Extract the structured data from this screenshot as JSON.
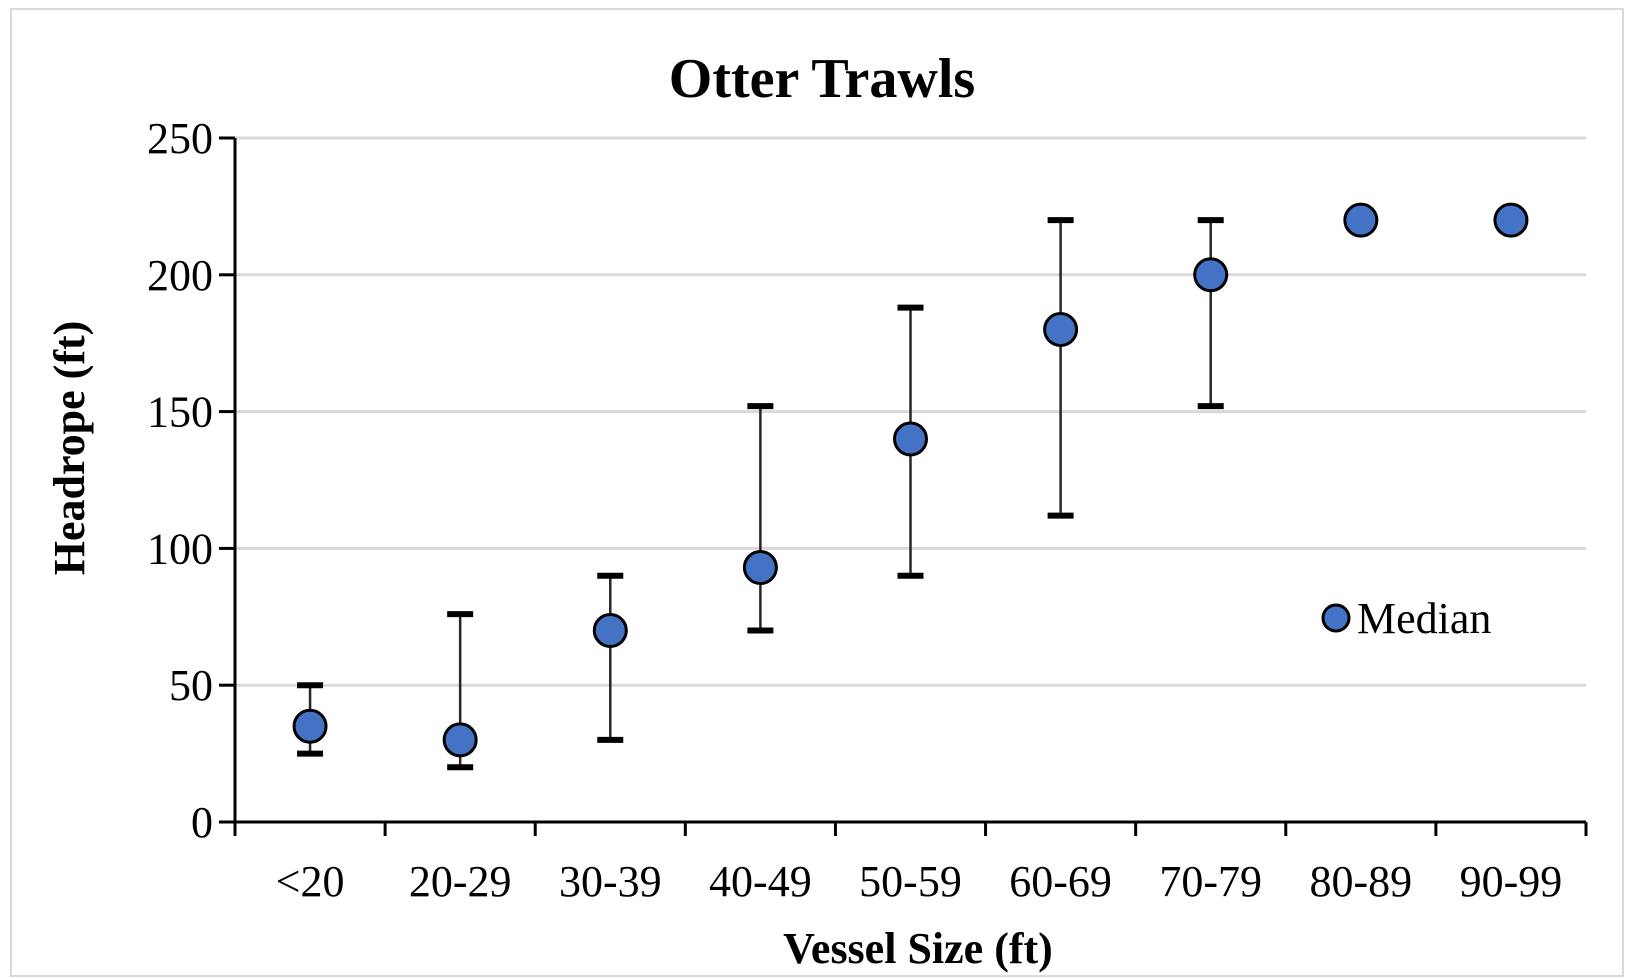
{
  "chart_data": {
    "type": "scatter",
    "title": "Otter Trawls",
    "xlabel": "Vessel Size (ft)",
    "ylabel": "Headrope (ft)",
    "categories": [
      "<20",
      "20-29",
      "30-39",
      "40-49",
      "50-59",
      "60-69",
      "70-79",
      "80-89",
      "90-99"
    ],
    "ylim": [
      0,
      250
    ],
    "yticks": [
      0,
      50,
      100,
      150,
      200,
      250
    ],
    "grid": true,
    "legend": "right",
    "series": [
      {
        "name": "Median",
        "color": "#4472c4",
        "values": [
          35,
          30,
          70,
          93,
          140,
          180,
          200,
          220,
          220
        ],
        "error_low": [
          25,
          20,
          30,
          70,
          90,
          112,
          152,
          null,
          null
        ],
        "error_high": [
          50,
          76,
          90,
          152,
          188,
          220,
          220,
          null,
          null
        ]
      }
    ]
  }
}
